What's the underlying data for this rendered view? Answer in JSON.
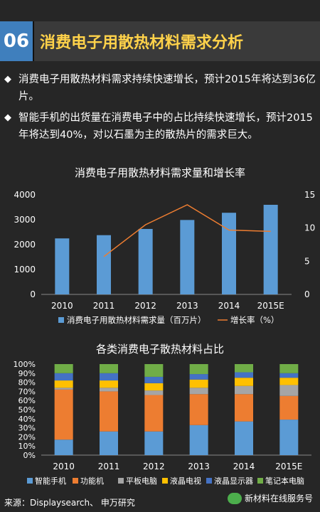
{
  "header": {
    "number": "06",
    "title": "消费电子用散热材料需求分析"
  },
  "bullets": [
    "消费电子用散热材料需求持续快速增长，预计2015年将达到36亿片。",
    "智能手机的出货量在消费电子中的占比持续快速增长，预计2015年将达到40%，对以石墨为主的散热片的需求巨大。"
  ],
  "bullet_icon": "diamond-icon",
  "chart_data": [
    {
      "type": "bar",
      "title": "消费电子用散热材料需求量和增长率",
      "categories": [
        "2010",
        "2011",
        "2012",
        "2013",
        "2014",
        "2015E"
      ],
      "series": [
        {
          "name": "消费电子用散热材料需求量（百万片）",
          "values": [
            2250,
            2380,
            2630,
            2990,
            3280,
            3600
          ],
          "color": "#5b9bd5"
        },
        {
          "name": "增长率（%）",
          "type": "line",
          "values": [
            null,
            5.7,
            10.5,
            13.5,
            9.7,
            9.5
          ],
          "color": "#ed7d31"
        }
      ],
      "y_ticks": [
        "0",
        "1000",
        "2000",
        "3000",
        "4000"
      ],
      "y2_ticks": [
        "0",
        "5",
        "10",
        "15"
      ],
      "ylim": [
        0,
        4000
      ],
      "y2lim": [
        0,
        15
      ],
      "legend": "bottom"
    },
    {
      "type": "bar",
      "stacked": true,
      "title": "各类消费电子散热材料占比",
      "categories": [
        "2010",
        "2011",
        "2012",
        "2013",
        "2014",
        "2015E"
      ],
      "y_ticks": [
        "0%",
        "10%",
        "20%",
        "30%",
        "40%",
        "50%",
        "60%",
        "70%",
        "80%",
        "90%",
        "100%"
      ],
      "ylim": [
        0,
        100
      ],
      "series": [
        {
          "name": "智能手机",
          "color": "#5b9bd5",
          "values": [
            17,
            26,
            26,
            33,
            37,
            39
          ]
        },
        {
          "name": "功能机",
          "color": "#ed7d31",
          "values": [
            55,
            44,
            40,
            34,
            30,
            26
          ]
        },
        {
          "name": "平板电脑",
          "color": "#a5a5a5",
          "values": [
            2,
            4,
            5,
            7,
            9,
            12
          ]
        },
        {
          "name": "液晶电视",
          "color": "#ffc000",
          "values": [
            8,
            8,
            8,
            9,
            9,
            8
          ]
        },
        {
          "name": "液晶显示器",
          "color": "#4472c4",
          "values": [
            8,
            8,
            7,
            6,
            6,
            5
          ]
        },
        {
          "name": "笔记本电脑",
          "color": "#70ad47",
          "values": [
            10,
            10,
            14,
            11,
            9,
            10
          ]
        }
      ],
      "legend": "bottom"
    }
  ],
  "source": "来源：Displaysearch、 申万研究",
  "watermark": "新材料在线服务号",
  "watermark_icon": "wechat-icon"
}
